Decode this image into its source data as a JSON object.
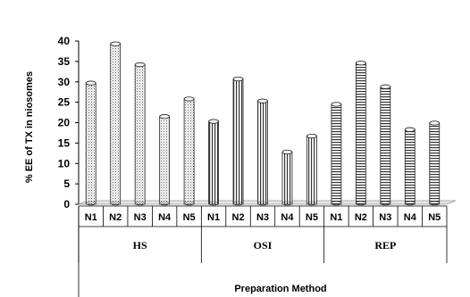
{
  "chart_data": {
    "type": "bar",
    "title": "",
    "xlabel": "Preparation Method",
    "ylabel": "% EE of TX in niosomes",
    "ylim": [
      0,
      40
    ],
    "yticks": [
      0,
      5,
      10,
      15,
      20,
      25,
      30,
      35,
      40
    ],
    "grid": false,
    "legend": "none",
    "groups": [
      {
        "name": "HS",
        "pattern": "dots",
        "categories": [
          "N1",
          "N2",
          "N3",
          "N4",
          "N5"
        ],
        "values": [
          29.7,
          39.3,
          34.2,
          21.5,
          25.8
        ]
      },
      {
        "name": "OSI",
        "pattern": "vertical-stripes",
        "categories": [
          "N1",
          "N2",
          "N3",
          "N4",
          "N5"
        ],
        "values": [
          20.3,
          30.7,
          25.3,
          12.8,
          16.7
        ]
      },
      {
        "name": "REP",
        "pattern": "horizontal-stripes",
        "categories": [
          "N1",
          "N2",
          "N3",
          "N4",
          "N5"
        ],
        "values": [
          24.5,
          34.6,
          28.8,
          18.3,
          19.9
        ]
      }
    ]
  }
}
